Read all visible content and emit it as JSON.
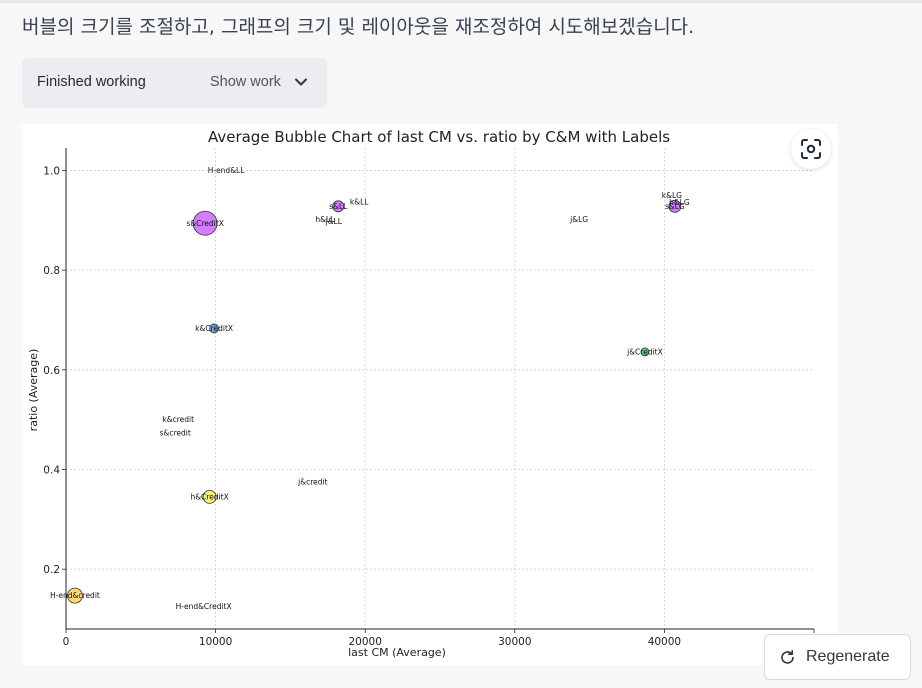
{
  "message": {
    "text": "버블의 크기를 조절하고, 그래프의 크기 및 레이아웃을 재조정하여 시도해보겠습니다."
  },
  "work_panel": {
    "status": "Finished working",
    "toggle_label": "Show work"
  },
  "regenerate": {
    "label": "Regenerate"
  },
  "chart_data": {
    "type": "scatter",
    "title": "Average Bubble Chart of last CM vs. ratio by C&M with Labels",
    "xlabel": "last CM (Average)",
    "ylabel": "ratio (Average)",
    "xlim": [
      0,
      50000
    ],
    "ylim": [
      0.08,
      1.045
    ],
    "xticks": [
      0,
      10000,
      20000,
      30000,
      40000,
      50000
    ],
    "yticks": [
      0.2,
      0.4,
      0.6,
      0.8,
      1.0
    ],
    "xtick_labels": [
      "0",
      "10000",
      "20000",
      "30000",
      "40000",
      "50000"
    ],
    "ytick_labels": [
      "0.2",
      "0.4",
      "0.6",
      "0.8",
      "1.0"
    ],
    "grid": true,
    "points": [
      {
        "label": "H-end&LL",
        "x": 10700,
        "y": 1.0,
        "size": 0,
        "color": "#cc66ff"
      },
      {
        "label": "s&CreditX",
        "x": 9300,
        "y": 0.894,
        "size": 12,
        "color": "#cc66ff"
      },
      {
        "label": "s&LL",
        "x": 18200,
        "y": 0.928,
        "size": 5.5,
        "color": "#cc66ff"
      },
      {
        "label": "k&LL",
        "x": 19600,
        "y": 0.937,
        "size": 0,
        "color": "#cc66ff"
      },
      {
        "label": "h&LL",
        "x": 17300,
        "y": 0.902,
        "size": 0,
        "color": "#99cc33"
      },
      {
        "label": "j&LL",
        "x": 17900,
        "y": 0.898,
        "size": 0,
        "color": "#99cc33"
      },
      {
        "label": "j&LG",
        "x": 34300,
        "y": 0.902,
        "size": 0,
        "color": "#cc66ff"
      },
      {
        "label": "k&LG",
        "x": 40500,
        "y": 0.95,
        "size": 0,
        "color": "#cc66ff"
      },
      {
        "label": "s&LG",
        "x": 40700,
        "y": 0.928,
        "size": 6,
        "color": "#cc66ff"
      },
      {
        "label": "h&LG",
        "x": 41000,
        "y": 0.936,
        "size": 0,
        "color": "#cc66ff"
      },
      {
        "label": "k&CreditX",
        "x": 9900,
        "y": 0.683,
        "size": 4.5,
        "color": "#5b8fd9"
      },
      {
        "label": "j&CreditX",
        "x": 38700,
        "y": 0.636,
        "size": 4,
        "color": "#33cc66"
      },
      {
        "label": "k&credit",
        "x": 7500,
        "y": 0.5,
        "size": 0,
        "color": "#f5d142"
      },
      {
        "label": "s&credit",
        "x": 7300,
        "y": 0.473,
        "size": 0,
        "color": "#f5d142"
      },
      {
        "label": "j&credit",
        "x": 16500,
        "y": 0.375,
        "size": 0,
        "color": "#f5d142"
      },
      {
        "label": "h&CreditX",
        "x": 9600,
        "y": 0.345,
        "size": 6.5,
        "color": "#f5f05a"
      },
      {
        "label": "H-end&credit",
        "x": 600,
        "y": 0.147,
        "size": 7.5,
        "color": "#ffd257"
      },
      {
        "label": "H-end&CreditX",
        "x": 9200,
        "y": 0.125,
        "size": 0,
        "color": "#f5d142"
      }
    ]
  }
}
